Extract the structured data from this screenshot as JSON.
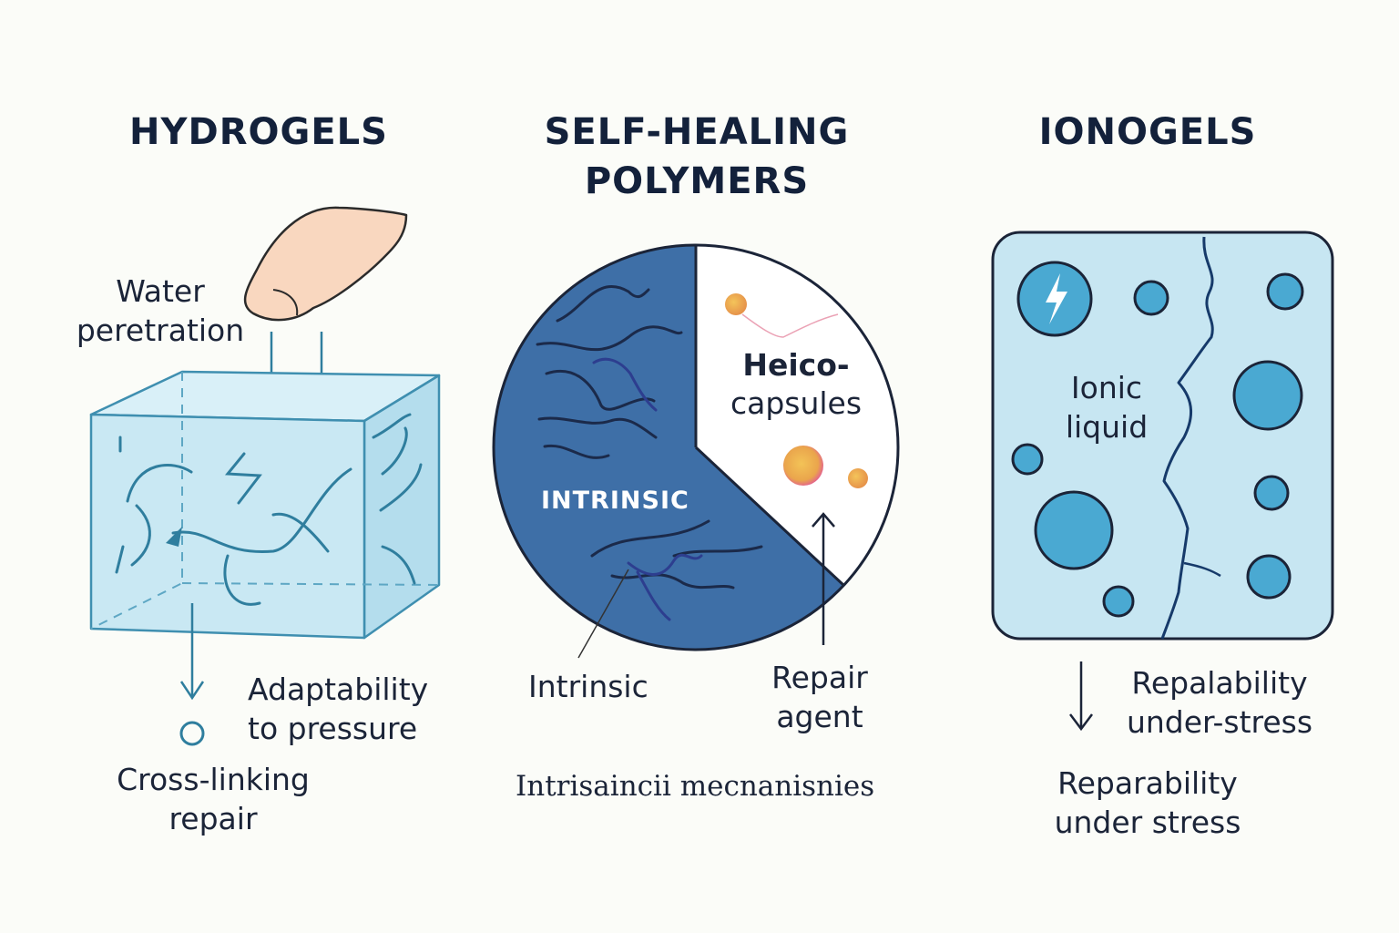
{
  "hydrogels": {
    "title": "HYDROGELS",
    "water_line1": "Water",
    "water_line2": "peretration",
    "adapt_line1": "Adaptability",
    "adapt_line2": "to pressure",
    "cross_line1": "Cross-linking",
    "cross_line2": "repair"
  },
  "self_healing": {
    "title_line1": "SELF-HEALING",
    "title_line2": "POLYMERS",
    "pie_intrinsic": "INTRINSIC",
    "capsules_line1": "Heico-",
    "capsules_line2": "capsules",
    "intrinsic_label": "Intrinsic",
    "repair_line1": "Repair",
    "repair_line2": "agent",
    "mechanisms": "Intrisaincii mecnanisnies"
  },
  "ionogels": {
    "title": "IONOGELS",
    "ionic_line1": "Ionic",
    "ionic_line2": "liquid",
    "stress_line1": "Repalability",
    "stress_line2": "under-stress",
    "bottom_line1": "Reparability",
    "bottom_line2": "under stress"
  },
  "colors": {
    "navy_text": "#13213b",
    "gel_fill": "#c9e8f3",
    "gel_stroke": "#3f8fb0",
    "polymer_blue": "#3e6fa7",
    "ion_fill": "#4aa9d2"
  },
  "icons": [
    "finger-icon",
    "lightning-icon",
    "down-arrow-icon",
    "up-arrow-icon"
  ]
}
